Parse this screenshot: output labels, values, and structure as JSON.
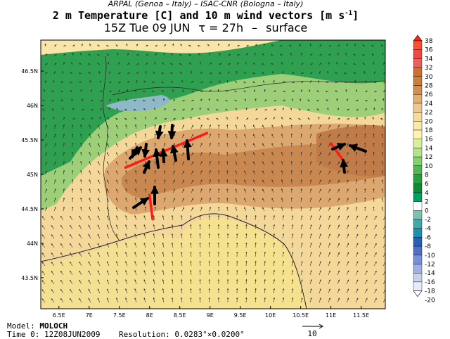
{
  "header": {
    "line1": "ARPAL (Genoa – Italy)   –   ISAC-CNR (Bologna – Italy)",
    "line2_main": "2 m Temperature [C] and 10 m wind vectors [m s",
    "line2_sup": "-1",
    "line2_end": "]",
    "time_label": "15Z Tue 09 JUN",
    "tau_label": "τ = 27h",
    "dash": "–",
    "level_label": "surface"
  },
  "map_data": {
    "type": "map",
    "lon_range": [
      6.2,
      11.9
    ],
    "lat_range": [
      43.05,
      46.95
    ],
    "lon_ticks": [
      "6.5E",
      "7E",
      "7.5E",
      "8E",
      "8.5E",
      "9E",
      "9.5E",
      "10E",
      "10.5E",
      "11E",
      "11.5E"
    ],
    "lon_tick_values": [
      6.5,
      7,
      7.5,
      8,
      8.5,
      9,
      9.5,
      10,
      10.5,
      11,
      11.5
    ],
    "lat_ticks": [
      "43.5N",
      "44N",
      "44.5N",
      "45N",
      "45.5N",
      "46N",
      "46.5N"
    ],
    "lat_tick_values": [
      43.5,
      44,
      44.5,
      45,
      45.5,
      46,
      46.5
    ],
    "colorbar_labels": [
      "38",
      "36",
      "34",
      "32",
      "30",
      "28",
      "26",
      "24",
      "22",
      "20",
      "18",
      "16",
      "14",
      "12",
      "10",
      "8",
      "6",
      "4",
      "2",
      "0",
      "-2",
      "-4",
      "-6",
      "-8",
      "-10",
      "-12",
      "-14",
      "-16",
      "-18",
      "-20"
    ],
    "colorbar_colors": [
      "#ff2020",
      "#f85030",
      "#f04848",
      "#e86060",
      "#d07030",
      "#c88040",
      "#d09055",
      "#e0b070",
      "#ecc890",
      "#f6dc9c",
      "#fce8a8",
      "#fff3b0",
      "#d8f09c",
      "#b4e488",
      "#84d070",
      "#50b850",
      "#28a040",
      "#108a38",
      "#00a060",
      "#ffffff",
      "#80c0b0",
      "#40a8a8",
      "#2090a8",
      "#2860b8",
      "#5070c8",
      "#7890d8",
      "#a0b0e0",
      "#c8d0ec",
      "#e8ecf8",
      "#ffffff"
    ],
    "red_lines": [
      {
        "lon1": 7.6,
        "lat1": 45.1,
        "lon2": 8.95,
        "lat2": 45.6
      },
      {
        "lon1": 8.0,
        "lat1": 44.7,
        "lon2": 8.05,
        "lat2": 44.35
      },
      {
        "lon1": 11.0,
        "lat1": 45.45,
        "lon2": 11.25,
        "lat2": 45.15
      }
    ]
  },
  "footer": {
    "model_prefix": "Model: ",
    "model_name": "MOLOCH",
    "time0": "Time 0: 12Z08JUN2009",
    "resolution": "Resolution: 0.0283°×0.0200°",
    "ref_vector": "10"
  }
}
